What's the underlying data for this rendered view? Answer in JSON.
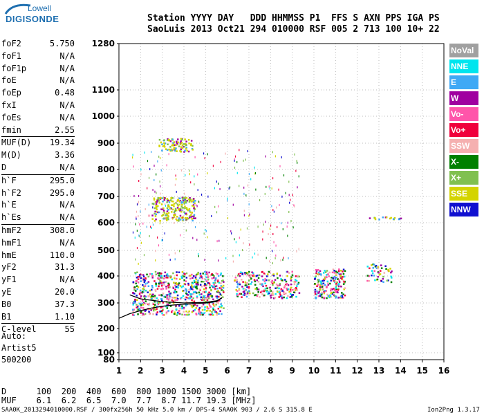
{
  "logo": {
    "top": "Lowell",
    "main": "DIGISONDE"
  },
  "header": {
    "line1": "Station YYYY DAY   DDD HHMMSS P1  FFS S AXN PPS IGA PS",
    "line2": "SaoLuis 2013 Oct21 294 010000 RSF 005 2 713 100 10+ 22"
  },
  "params": [
    {
      "name": "foF2",
      "value": "5.750"
    },
    {
      "name": "foF1",
      "value": "N/A"
    },
    {
      "name": "foF1p",
      "value": "N/A"
    },
    {
      "name": "foE",
      "value": "N/A"
    },
    {
      "name": "foEp",
      "value": "0.48"
    },
    {
      "name": "fxI",
      "value": "N/A"
    },
    {
      "name": "foEs",
      "value": "N/A"
    },
    {
      "name": "fmin",
      "value": "2.55"
    },
    {
      "sep": true
    },
    {
      "name": "MUF(D)",
      "value": "19.34"
    },
    {
      "name": "M(D)",
      "value": "3.36"
    },
    {
      "name": "D",
      "value": "N/A"
    },
    {
      "sep": true
    },
    {
      "name": "h`F",
      "value": "295.0"
    },
    {
      "name": "h`F2",
      "value": "295.0"
    },
    {
      "name": "h`E",
      "value": "N/A"
    },
    {
      "name": "h`Es",
      "value": "N/A"
    },
    {
      "sep": true
    },
    {
      "name": "hmF2",
      "value": "308.0"
    },
    {
      "name": "hmF1",
      "value": "N/A"
    },
    {
      "name": "hmE",
      "value": "110.0"
    },
    {
      "name": "yF2",
      "value": "31.3"
    },
    {
      "name": "yF1",
      "value": "N/A"
    },
    {
      "name": "yE",
      "value": "20.0"
    },
    {
      "name": "B0",
      "value": "37.3"
    },
    {
      "name": "B1",
      "value": "1.10"
    },
    {
      "sep": true
    },
    {
      "name": "C-level",
      "value": "55"
    }
  ],
  "auto": {
    "line1": "Auto:",
    "line2": "Artist5",
    "line3": "500200"
  },
  "legend": [
    {
      "label": "NoVal",
      "color": "#a0a0a0"
    },
    {
      "label": "NNE",
      "color": "#00e5ee"
    },
    {
      "label": "E",
      "color": "#3fa9f5"
    },
    {
      "label": "W",
      "color": "#a000a0"
    },
    {
      "label": "Vo-",
      "color": "#ff55aa"
    },
    {
      "label": "Vo+",
      "color": "#f0003c"
    },
    {
      "label": "SSW",
      "color": "#f5b0b0"
    },
    {
      "label": "X-",
      "color": "#008000"
    },
    {
      "label": "X+",
      "color": "#80c050"
    },
    {
      "label": "SSE",
      "color": "#d4d400"
    },
    {
      "label": "NNW",
      "color": "#1010d0"
    }
  ],
  "bottom": {
    "d_row": "D      100  200  400  600  800 1000 1500 3000 [km]",
    "muf_row": "MUF    6.1  6.2  6.5  7.0  7.7  8.7 11.7 19.3 [MHz]"
  },
  "footer": {
    "left": "SAA0K_2013294010000.RSF / 300fx256h 50 kHz 5.0 km / DPS-4 SAA0K 903 / 2.6 S 315.8 E",
    "right": "Ion2Png 1.3.17"
  },
  "chart_data": {
    "type": "scatter",
    "x_ticks": [
      "1",
      "2",
      "3",
      "4",
      "5",
      "6",
      "7",
      "8",
      "9",
      "10",
      "11",
      "12",
      "13",
      "14",
      "15",
      "16"
    ],
    "y_ticks": [
      "80",
      "100",
      "200",
      "300",
      "400",
      "500",
      "600",
      "700",
      "800",
      "900",
      "1000",
      "1100",
      "1280"
    ],
    "xlim": [
      1,
      16
    ],
    "ylim": [
      80,
      1280
    ],
    "grid": true,
    "trace_curve": {
      "x": [
        1.0,
        1.5,
        2.0,
        2.5,
        3.0,
        3.5,
        4.0,
        4.5,
        5.0,
        5.5,
        5.75
      ],
      "y": [
        240,
        258,
        270,
        280,
        287,
        292,
        295,
        297,
        300,
        305,
        320
      ]
    },
    "profile_curve": {
      "x": [
        1.5,
        2.0,
        3.0,
        4.0,
        5.0,
        5.5,
        5.75
      ],
      "y": [
        330,
        315,
        305,
        300,
        302,
        308,
        318
      ]
    },
    "echo_clusters": [
      {
        "x0": 1.6,
        "x1": 5.8,
        "y0": 255,
        "y1": 420,
        "n": 700,
        "mode": "F"
      },
      {
        "x0": 2.5,
        "x1": 4.5,
        "y0": 610,
        "y1": 700,
        "n": 220,
        "mode": "F2"
      },
      {
        "x0": 2.8,
        "x1": 4.4,
        "y0": 870,
        "y1": 920,
        "n": 90,
        "mode": "F3"
      },
      {
        "x0": 6.3,
        "x1": 9.3,
        "y0": 320,
        "y1": 420,
        "n": 260,
        "mode": "F"
      },
      {
        "x0": 10.0,
        "x1": 11.4,
        "y0": 320,
        "y1": 430,
        "n": 200,
        "mode": "F"
      },
      {
        "x0": 12.4,
        "x1": 13.6,
        "y0": 380,
        "y1": 450,
        "n": 50,
        "mode": "F"
      },
      {
        "x0": 12.4,
        "x1": 14.0,
        "y0": 615,
        "y1": 625,
        "n": 20,
        "mode": "F2"
      },
      {
        "x0": 1.6,
        "x1": 9.3,
        "y0": 450,
        "y1": 880,
        "n": 260,
        "mode": "vert"
      }
    ]
  }
}
